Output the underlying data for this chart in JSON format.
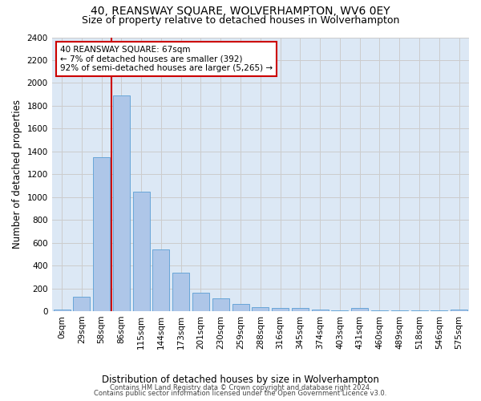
{
  "title": "40, REANSWAY SQUARE, WOLVERHAMPTON, WV6 0EY",
  "subtitle": "Size of property relative to detached houses in Wolverhampton",
  "xlabel": "Distribution of detached houses by size in Wolverhampton",
  "ylabel": "Number of detached properties",
  "categories": [
    "0sqm",
    "29sqm",
    "58sqm",
    "86sqm",
    "115sqm",
    "144sqm",
    "173sqm",
    "201sqm",
    "230sqm",
    "259sqm",
    "288sqm",
    "316sqm",
    "345sqm",
    "374sqm",
    "403sqm",
    "431sqm",
    "460sqm",
    "489sqm",
    "518sqm",
    "546sqm",
    "575sqm"
  ],
  "values": [
    15,
    125,
    1350,
    1890,
    1045,
    540,
    335,
    165,
    110,
    60,
    38,
    28,
    25,
    15,
    10,
    25,
    5,
    5,
    5,
    5,
    15
  ],
  "bar_color": "#aec6e8",
  "bar_edge_color": "#5a9fd4",
  "annotation_text": "40 REANSWAY SQUARE: 67sqm\n← 7% of detached houses are smaller (392)\n92% of semi-detached houses are larger (5,265) →",
  "annotation_box_color": "#ffffff",
  "annotation_box_edge_color": "#cc0000",
  "vline_color": "#cc0000",
  "vline_x": 2.5,
  "ylim": [
    0,
    2400
  ],
  "yticks": [
    0,
    200,
    400,
    600,
    800,
    1000,
    1200,
    1400,
    1600,
    1800,
    2000,
    2200,
    2400
  ],
  "grid_color": "#cccccc",
  "bg_color": "#dce8f5",
  "footer_line1": "Contains HM Land Registry data © Crown copyright and database right 2024.",
  "footer_line2": "Contains public sector information licensed under the Open Government Licence v3.0.",
  "title_fontsize": 10,
  "subtitle_fontsize": 9,
  "xlabel_fontsize": 8.5,
  "ylabel_fontsize": 8.5,
  "tick_fontsize": 7.5,
  "annotation_fontsize": 7.5
}
